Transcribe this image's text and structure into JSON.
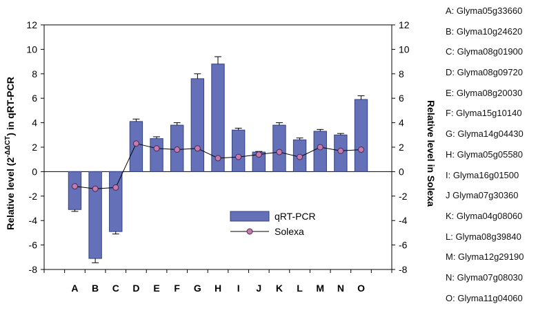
{
  "chart_data": {
    "type": "bar",
    "categories": [
      "A",
      "B",
      "C",
      "D",
      "E",
      "F",
      "G",
      "H",
      "I",
      "J",
      "K",
      "L",
      "M",
      "N",
      "O"
    ],
    "ylim": [
      -8,
      12
    ],
    "yticks": [
      "12",
      "10",
      "8",
      "6",
      "4",
      "2",
      "0",
      "-2",
      "-4",
      "-6",
      "-8"
    ],
    "left_ylabel_prefix": "Relative level (2",
    "left_ylabel_sup": "-ΔΔCT",
    "left_ylabel_suffix": ") in qRT-PCR",
    "right_ylabel": "Relative level in Solexa",
    "grid": false,
    "legend_position": "lower-right",
    "series": [
      {
        "name": "qRT-PCR",
        "type": "bar",
        "color": "#6471b8",
        "values": [
          -3.1,
          -7.1,
          -4.9,
          4.1,
          2.7,
          3.8,
          7.6,
          8.8,
          3.4,
          1.6,
          3.8,
          2.6,
          3.3,
          3.0,
          5.9
        ],
        "errors": [
          0.15,
          0.35,
          0.2,
          0.2,
          0.15,
          0.2,
          0.4,
          0.6,
          0.15,
          0.05,
          0.2,
          0.15,
          0.15,
          0.12,
          0.3
        ]
      },
      {
        "name": "Solexa",
        "type": "line",
        "color": "#c77ab2",
        "values": [
          -1.2,
          -1.4,
          -1.3,
          2.3,
          1.9,
          1.8,
          1.9,
          1.1,
          1.2,
          1.4,
          1.6,
          1.2,
          2.0,
          1.7,
          1.8
        ]
      }
    ]
  },
  "gene_labels": [
    "A: Glyma05g33660",
    "B: Glyma10g24620",
    "C: Glyma08g01900",
    "D: Glyma08g09720",
    "E: Glyma08g20030",
    "F: Glyma15g10140",
    "G: Glyma14g04430",
    "H: Glyma05g05580",
    "I: Glyma16g01500",
    "J Glyma07g30360",
    "K: Glyma04g08060",
    "L: Glyma08g39840",
    "M: Glyma12g29190",
    "N: Glyma07g08030",
    "O: Glyma11g04060"
  ]
}
